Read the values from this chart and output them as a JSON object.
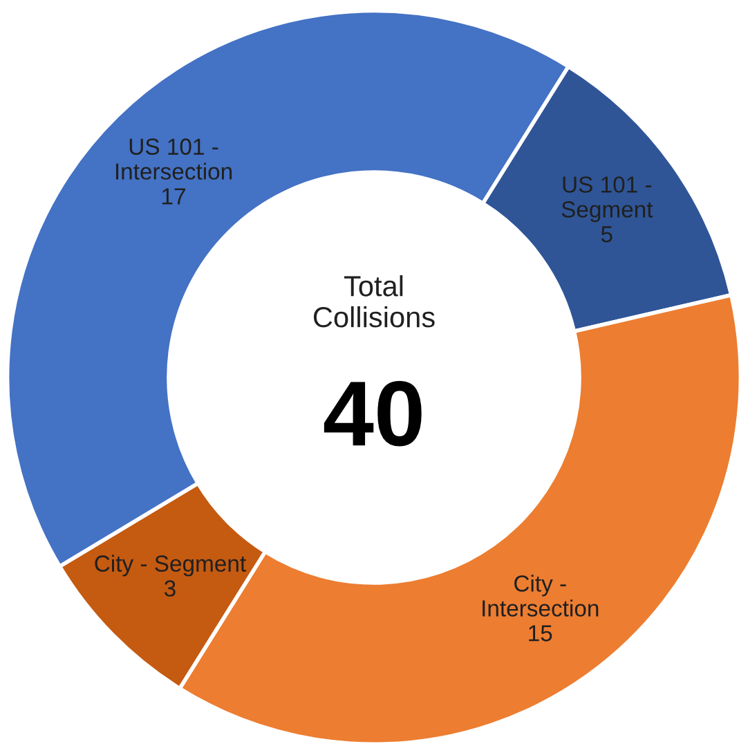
{
  "chart_data": {
    "type": "donut",
    "categories": [
      "US 101 -\nSegment",
      "City -\nIntersection",
      "City - Segment",
      "US 101 -\nIntersection"
    ],
    "values": [
      5,
      15,
      3,
      17
    ],
    "colors": [
      "#2f5597",
      "#ed7d31",
      "#c55a11",
      "#4472c4"
    ],
    "data_labels": true,
    "annotations": [
      "Total\nCollisions",
      "40"
    ]
  }
}
